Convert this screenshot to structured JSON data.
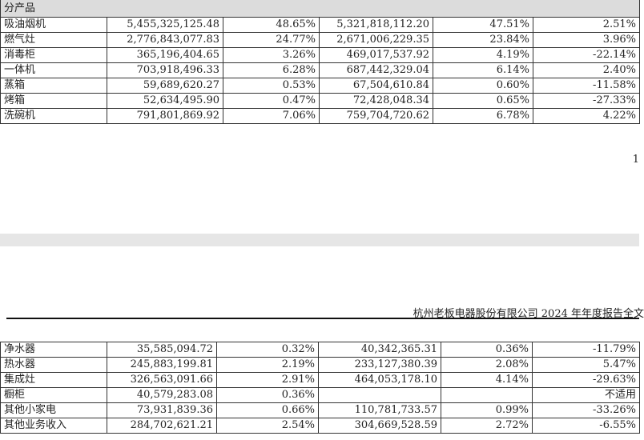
{
  "table_top": {
    "section_label": "分产品",
    "rows": [
      [
        "吸油烟机",
        "5,455,325,125.48",
        "48.65%",
        "5,321,818,112.20",
        "47.51%",
        "2.51%"
      ],
      [
        "燃气灶",
        "2,776,843,077.83",
        "24.77%",
        "2,671,006,229.35",
        "23.84%",
        "3.96%"
      ],
      [
        "消毒柜",
        "365,196,404.65",
        "3.26%",
        "469,017,537.92",
        "4.19%",
        "-22.14%"
      ],
      [
        "一体机",
        "703,918,496.33",
        "6.28%",
        "687,442,329.04",
        "6.14%",
        "2.40%"
      ],
      [
        "蒸箱",
        "59,689,620.27",
        "0.53%",
        "67,504,610.84",
        "0.60%",
        "-11.58%"
      ],
      [
        "烤箱",
        "52,634,495.90",
        "0.47%",
        "72,428,048.34",
        "0.65%",
        "-27.33%"
      ],
      [
        "洗碗机",
        "791,801,869.92",
        "7.06%",
        "759,704,720.62",
        "6.78%",
        "4.22%"
      ]
    ]
  },
  "page_number": "1",
  "running_header": "杭州老板电器股份有限公司 2024 年年度报告全文",
  "table_bottom": {
    "rows": [
      [
        "净水器",
        "35,585,094.72",
        "0.32%",
        "40,342,365.31",
        "0.36%",
        "-11.79%"
      ],
      [
        "热水器",
        "245,883,199.81",
        "2.19%",
        "233,127,380.39",
        "2.08%",
        "5.47%"
      ],
      [
        "集成灶",
        "326,563,091.66",
        "2.91%",
        "464,053,178.10",
        "4.14%",
        "-29.63%"
      ],
      [
        "橱柜",
        "40,579,283.08",
        "0.36%",
        "",
        "",
        "不适用"
      ],
      [
        "其他小家电",
        "73,931,839.36",
        "0.66%",
        "110,781,733.57",
        "0.99%",
        "-33.26%"
      ],
      [
        "其他业务收入",
        "284,702,621.21",
        "2.54%",
        "304,669,528.59",
        "2.72%",
        "-6.55%"
      ]
    ]
  }
}
